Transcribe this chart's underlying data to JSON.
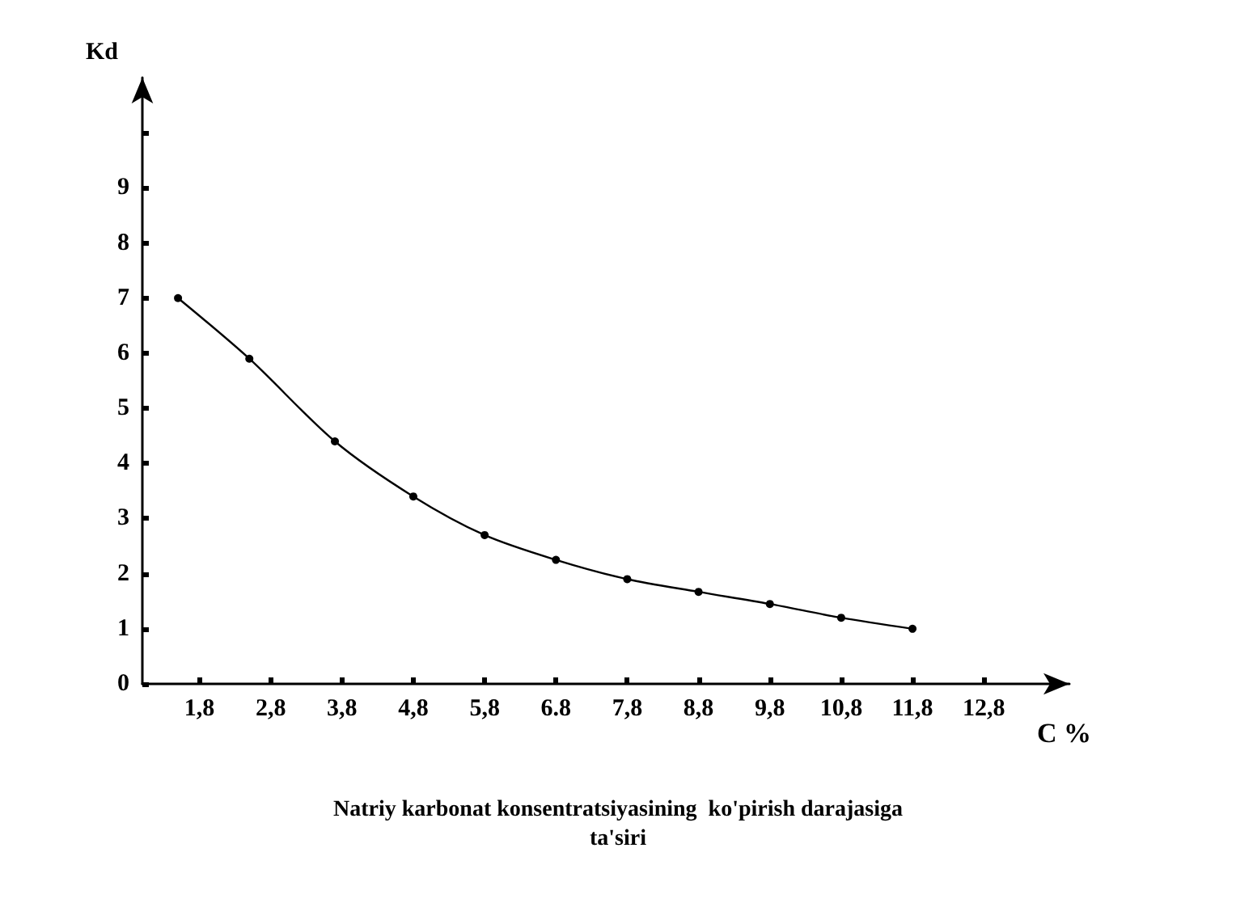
{
  "chart_data": {
    "type": "line",
    "title": "Natriy karbonat konsentratsiyasining  ko'pirish darajasiga\nta'siri",
    "xlabel": "C %",
    "ylabel": "Kd",
    "x": [
      1.5,
      2.5,
      3.7,
      4.8,
      5.8,
      6.8,
      7.8,
      8.8,
      9.8,
      10.8,
      11.8
    ],
    "series": [
      {
        "color": "#000000",
        "values": [
          7.0,
          5.9,
          4.4,
          3.4,
          2.7,
          2.25,
          1.9,
          1.67,
          1.45,
          1.2,
          1.0
        ]
      }
    ],
    "xlim": [
      1,
      14
    ],
    "xticks": [
      {
        "value": 1.8,
        "label": "1,8"
      },
      {
        "value": 2.8,
        "label": "2,8"
      },
      {
        "value": 3.8,
        "label": "3,8"
      },
      {
        "value": 4.8,
        "label": "4,8"
      },
      {
        "value": 5.8,
        "label": "5,8"
      },
      {
        "value": 6.8,
        "label": "6.8"
      },
      {
        "value": 7.8,
        "label": "7,8"
      },
      {
        "value": 8.8,
        "label": "8,8"
      },
      {
        "value": 9.8,
        "label": "9,8"
      },
      {
        "value": 10.8,
        "label": "10,8"
      },
      {
        "value": 11.8,
        "label": "11,8"
      },
      {
        "value": 12.8,
        "label": "12,8"
      }
    ],
    "ylim": [
      0,
      11
    ],
    "yticks": [
      0,
      1,
      2,
      3,
      4,
      5,
      6,
      7,
      8,
      9,
      {
        "value": 10,
        "label": null
      }
    ],
    "grid": false,
    "marker": "circle",
    "line_style": "solid"
  }
}
